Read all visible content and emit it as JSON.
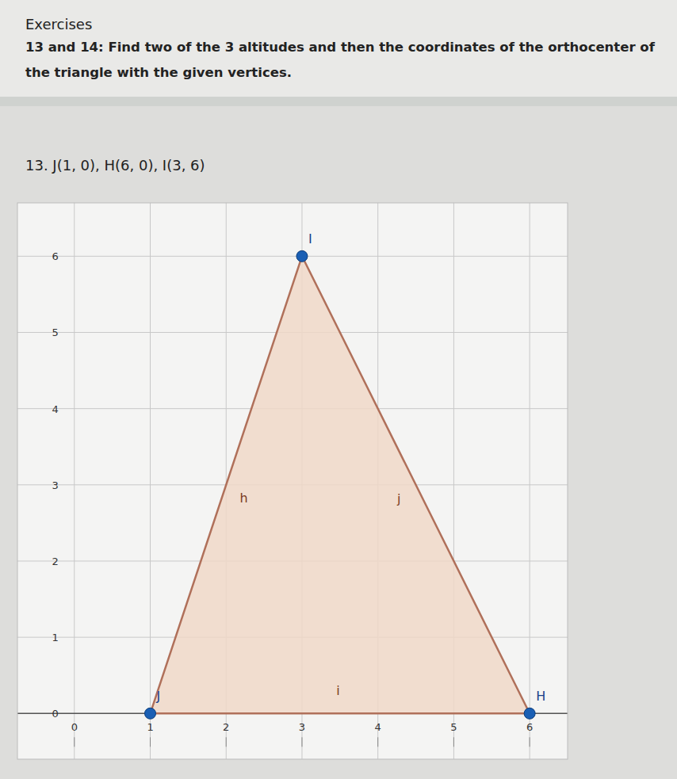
{
  "header": {
    "title": "Exercises",
    "instructions": "13 and 14: Find two of the 3 altitudes and then the coordinates of the orthocenter of the triangle with the given vertices.",
    "problem": "13. J(1, 0), H(6, 0), I(3, 6)"
  },
  "chart_data": {
    "type": "polygon",
    "x": [
      1,
      6,
      3
    ],
    "y": [
      0,
      0,
      6
    ],
    "labels": [
      "J",
      "H",
      "I"
    ],
    "edge_labels": [
      "i",
      "j",
      "h"
    ],
    "color": "#b0705a",
    "marker": "circle",
    "xlim": [
      -0.75,
      6.5
    ],
    "ylim": [
      -0.6,
      6.7
    ],
    "xticks": [
      0,
      1,
      2,
      3,
      4,
      5,
      6
    ],
    "yticks": [
      0,
      1,
      2,
      3,
      4,
      5,
      6
    ],
    "grid": true
  }
}
